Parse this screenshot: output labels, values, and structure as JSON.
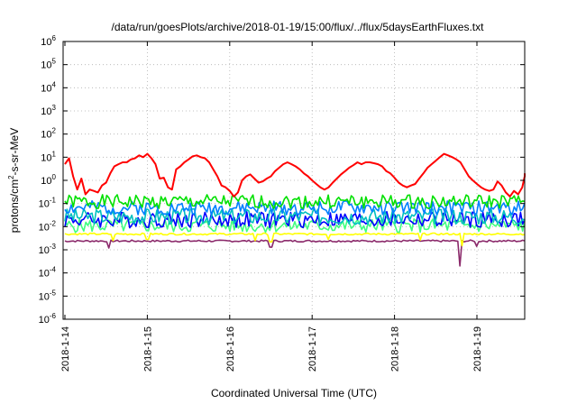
{
  "chart_data": {
    "type": "line",
    "title": "/data/run/goesPlots/archive/2018-01-19/15:00/flux/../flux/5daysEarthFluxes.txt",
    "xlabel": "Coordinated Universal Time (UTC)",
    "ylabel": "protons/cm²-s-sr-MeV",
    "ylabel_parts": {
      "base": "protons/cm",
      "sup": "2",
      "rest": "-s-sr-MeV"
    },
    "yscale": "log",
    "ylim": [
      1e-06,
      1000000.0
    ],
    "xlim": [
      "2018-01-14 00:00",
      "2018-01-19 15:00"
    ],
    "grid": true,
    "legend": "none",
    "x_ticks": [
      "2018-1-14",
      "2018-1-15",
      "2018-1-16",
      "2018-1-17",
      "2018-1-18",
      "2018-1-19"
    ],
    "y_ticks": [
      {
        "base": "10",
        "exp": "-6"
      },
      {
        "base": "10",
        "exp": "-5"
      },
      {
        "base": "10",
        "exp": "-4"
      },
      {
        "base": "10",
        "exp": "-3"
      },
      {
        "base": "10",
        "exp": "-2"
      },
      {
        "base": "10",
        "exp": "-1"
      },
      {
        "base": "10",
        "exp": "0"
      },
      {
        "base": "10",
        "exp": "1"
      },
      {
        "base": "10",
        "exp": "2"
      },
      {
        "base": "10",
        "exp": "3"
      },
      {
        "base": "10",
        "exp": "4"
      },
      {
        "base": "10",
        "exp": "5"
      },
      {
        "base": "10",
        "exp": "6"
      }
    ],
    "series": [
      {
        "color": "#ff0000",
        "x": [
          0,
          0.05,
          0.1,
          0.15,
          0.2,
          0.25,
          0.3,
          0.35,
          0.4,
          0.45,
          0.5,
          0.55,
          0.6,
          0.65,
          0.7,
          0.75,
          0.8,
          0.85,
          0.9,
          0.95,
          1.0,
          1.05,
          1.1,
          1.15,
          1.2,
          1.25,
          1.3,
          1.35,
          1.4,
          1.45,
          1.5,
          1.55,
          1.6,
          1.65,
          1.7,
          1.75,
          1.8,
          1.85,
          1.9,
          1.95,
          2.0,
          2.05,
          2.1,
          2.15,
          2.2,
          2.25,
          2.3,
          2.35,
          2.4,
          2.45,
          2.5,
          2.55,
          2.6,
          2.65,
          2.7,
          2.75,
          2.8,
          2.85,
          2.9,
          2.95,
          3.0,
          3.05,
          3.1,
          3.15,
          3.2,
          3.25,
          3.3,
          3.35,
          3.4,
          3.45,
          3.5,
          3.55,
          3.6,
          3.65,
          3.7,
          3.75,
          3.8,
          3.85,
          3.9,
          3.95,
          4.0,
          4.05,
          4.1,
          4.15,
          4.2,
          4.25,
          4.3,
          4.35,
          4.4,
          4.45,
          4.5,
          4.55,
          4.6,
          4.65,
          4.7,
          4.75,
          4.8,
          4.85,
          4.9,
          4.95,
          5.0,
          5.05,
          5.1,
          5.15,
          5.2,
          5.25,
          5.3,
          5.35,
          5.4,
          5.45,
          5.5,
          5.55,
          5.6,
          5.625
        ],
        "y": [
          5,
          9,
          1.5,
          0.4,
          1.2,
          0.25,
          0.4,
          0.35,
          0.3,
          0.6,
          0.8,
          2,
          4,
          5,
          6,
          6,
          8,
          9,
          12,
          10,
          14,
          9,
          5,
          1.2,
          1.3,
          0.5,
          0.4,
          3,
          4,
          6,
          8,
          11,
          12,
          10,
          9,
          6,
          3,
          1.5,
          0.6,
          0.5,
          0.35,
          0.2,
          0.3,
          1,
          1.5,
          1.8,
          1.2,
          0.8,
          0.9,
          1.2,
          1.5,
          2.5,
          3.5,
          5,
          6,
          5,
          4,
          3,
          2,
          1.5,
          1,
          0.7,
          0.5,
          0.4,
          0.5,
          0.8,
          1.2,
          1.8,
          2.5,
          3.5,
          4.5,
          6,
          5,
          6,
          6,
          5.5,
          5,
          4,
          2.5,
          2,
          1.3,
          0.8,
          0.6,
          0.5,
          0.6,
          0.7,
          1.2,
          2,
          3.5,
          5,
          7,
          10,
          14,
          12,
          10,
          8,
          6,
          3,
          1.5,
          1,
          0.7,
          0.5,
          0.4,
          0.35,
          0.4,
          0.9,
          0.6,
          0.3,
          0.2,
          0.35,
          0.25,
          0.5,
          1.5,
          2
        ]
      },
      {
        "color": "#00e000",
        "gen": {
          "base": 0.12,
          "amp": 0.3,
          "seed": 1
        }
      },
      {
        "color": "#0080ff",
        "gen": {
          "base": 0.065,
          "amp": 0.3,
          "seed": 2
        }
      },
      {
        "color": "#00c0c0",
        "gen": {
          "base": 0.028,
          "amp": 0.35,
          "seed": 3
        }
      },
      {
        "color": "#0000ff",
        "gen": {
          "base": 0.02,
          "amp": 0.35,
          "seed": 4
        }
      },
      {
        "color": "#40ff80",
        "gen": {
          "base": 0.011,
          "amp": 0.3,
          "seed": 5
        }
      },
      {
        "color": "#ffff00",
        "gen": {
          "base": 0.0048,
          "amp": 0.04,
          "seed": 6,
          "dips": [
            [
              0.58,
              0.0025
            ],
            [
              1.0,
              0.0028
            ],
            [
              2.3,
              0.0025
            ],
            [
              2.5,
              0.0022
            ],
            [
              3.2,
              0.0028
            ],
            [
              4.32,
              0.0026
            ],
            [
              4.82,
              0.0015
            ],
            [
              5.6,
              0.0022
            ]
          ]
        }
      },
      {
        "color": "#8b2a6b",
        "gen": {
          "base": 0.0024,
          "amp": 0.04,
          "seed": 7,
          "dips": [
            [
              0.53,
              0.0012
            ],
            [
              2.5,
              0.0013
            ],
            [
              4.8,
              0.0002
            ],
            [
              5.0,
              0.0014
            ]
          ]
        }
      }
    ]
  }
}
